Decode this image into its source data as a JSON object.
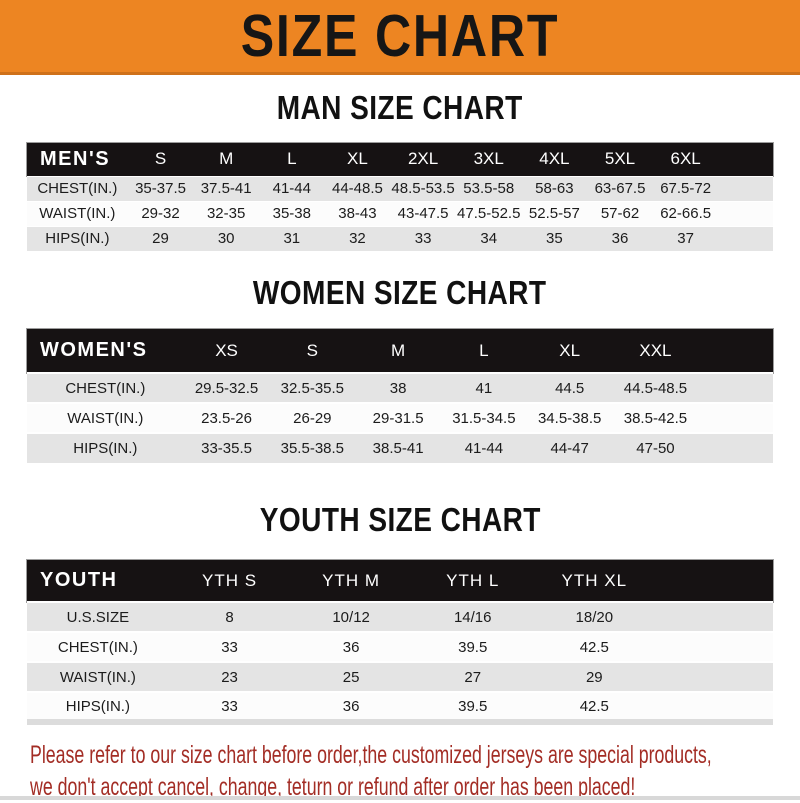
{
  "banner": {
    "title": "SIZE CHART"
  },
  "sections": {
    "men": {
      "heading": "MAN SIZE CHART",
      "table_title": "MEN'S",
      "columns": [
        "S",
        "M",
        "L",
        "XL",
        "2XL",
        "3XL",
        "4XL",
        "5XL",
        "6XL"
      ],
      "rows": [
        {
          "label": "CHEST(IN.)",
          "values": [
            "35-37.5",
            "37.5-41",
            "41-44",
            "44-48.5",
            "48.5-53.5",
            "53.5-58",
            "58-63",
            "63-67.5",
            "67.5-72"
          ]
        },
        {
          "label": "WAIST(IN.)",
          "values": [
            "29-32",
            "32-35",
            "35-38",
            "38-43",
            "43-47.5",
            "47.5-52.5",
            "52.5-57",
            "57-62",
            "62-66.5"
          ]
        },
        {
          "label": "HIPS(IN.)",
          "values": [
            "29",
            "30",
            "31",
            "32",
            "33",
            "34",
            "35",
            "36",
            "37"
          ]
        }
      ]
    },
    "women": {
      "heading": "WOMEN SIZE CHART",
      "table_title": "WOMEN'S",
      "columns": [
        "XS",
        "S",
        "M",
        "L",
        "XL",
        "XXL"
      ],
      "rows": [
        {
          "label": "CHEST(IN.)",
          "values": [
            "29.5-32.5",
            "32.5-35.5",
            "38",
            "41",
            "44.5",
            "44.5-48.5"
          ]
        },
        {
          "label": "WAIST(IN.)",
          "values": [
            "23.5-26",
            "26-29",
            "29-31.5",
            "31.5-34.5",
            "34.5-38.5",
            "38.5-42.5"
          ]
        },
        {
          "label": "HIPS(IN.)",
          "values": [
            "33-35.5",
            "35.5-38.5",
            "38.5-41",
            "41-44",
            "44-47",
            "47-50"
          ]
        }
      ]
    },
    "youth": {
      "heading": "YOUTH SIZE CHART",
      "table_title": "YOUTH",
      "columns": [
        "YTH S",
        "YTH M",
        "YTH L",
        "YTH XL"
      ],
      "rows": [
        {
          "label": "U.S.SIZE",
          "values": [
            "8",
            "10/12",
            "14/16",
            "18/20"
          ]
        },
        {
          "label": "CHEST(IN.)",
          "values": [
            "33",
            "36",
            "39.5",
            "42.5"
          ]
        },
        {
          "label": "WAIST(IN.)",
          "values": [
            "23",
            "25",
            "27",
            "29"
          ]
        },
        {
          "label": "HIPS(IN.)",
          "values": [
            "33",
            "36",
            "39.5",
            "42.5"
          ]
        }
      ]
    }
  },
  "footer": {
    "line1": "Please refer to our size chart before order,the customized jerseys are special products,",
    "line2": "we don't accept cancel, change, teturn or refund after order has been placed!"
  },
  "colors": {
    "banner_orange": "#ed8522",
    "band_black": "#161213",
    "row_gray": "#e4e4e4",
    "row_white": "#fcfcfc",
    "footer_red": "#a32d25"
  }
}
